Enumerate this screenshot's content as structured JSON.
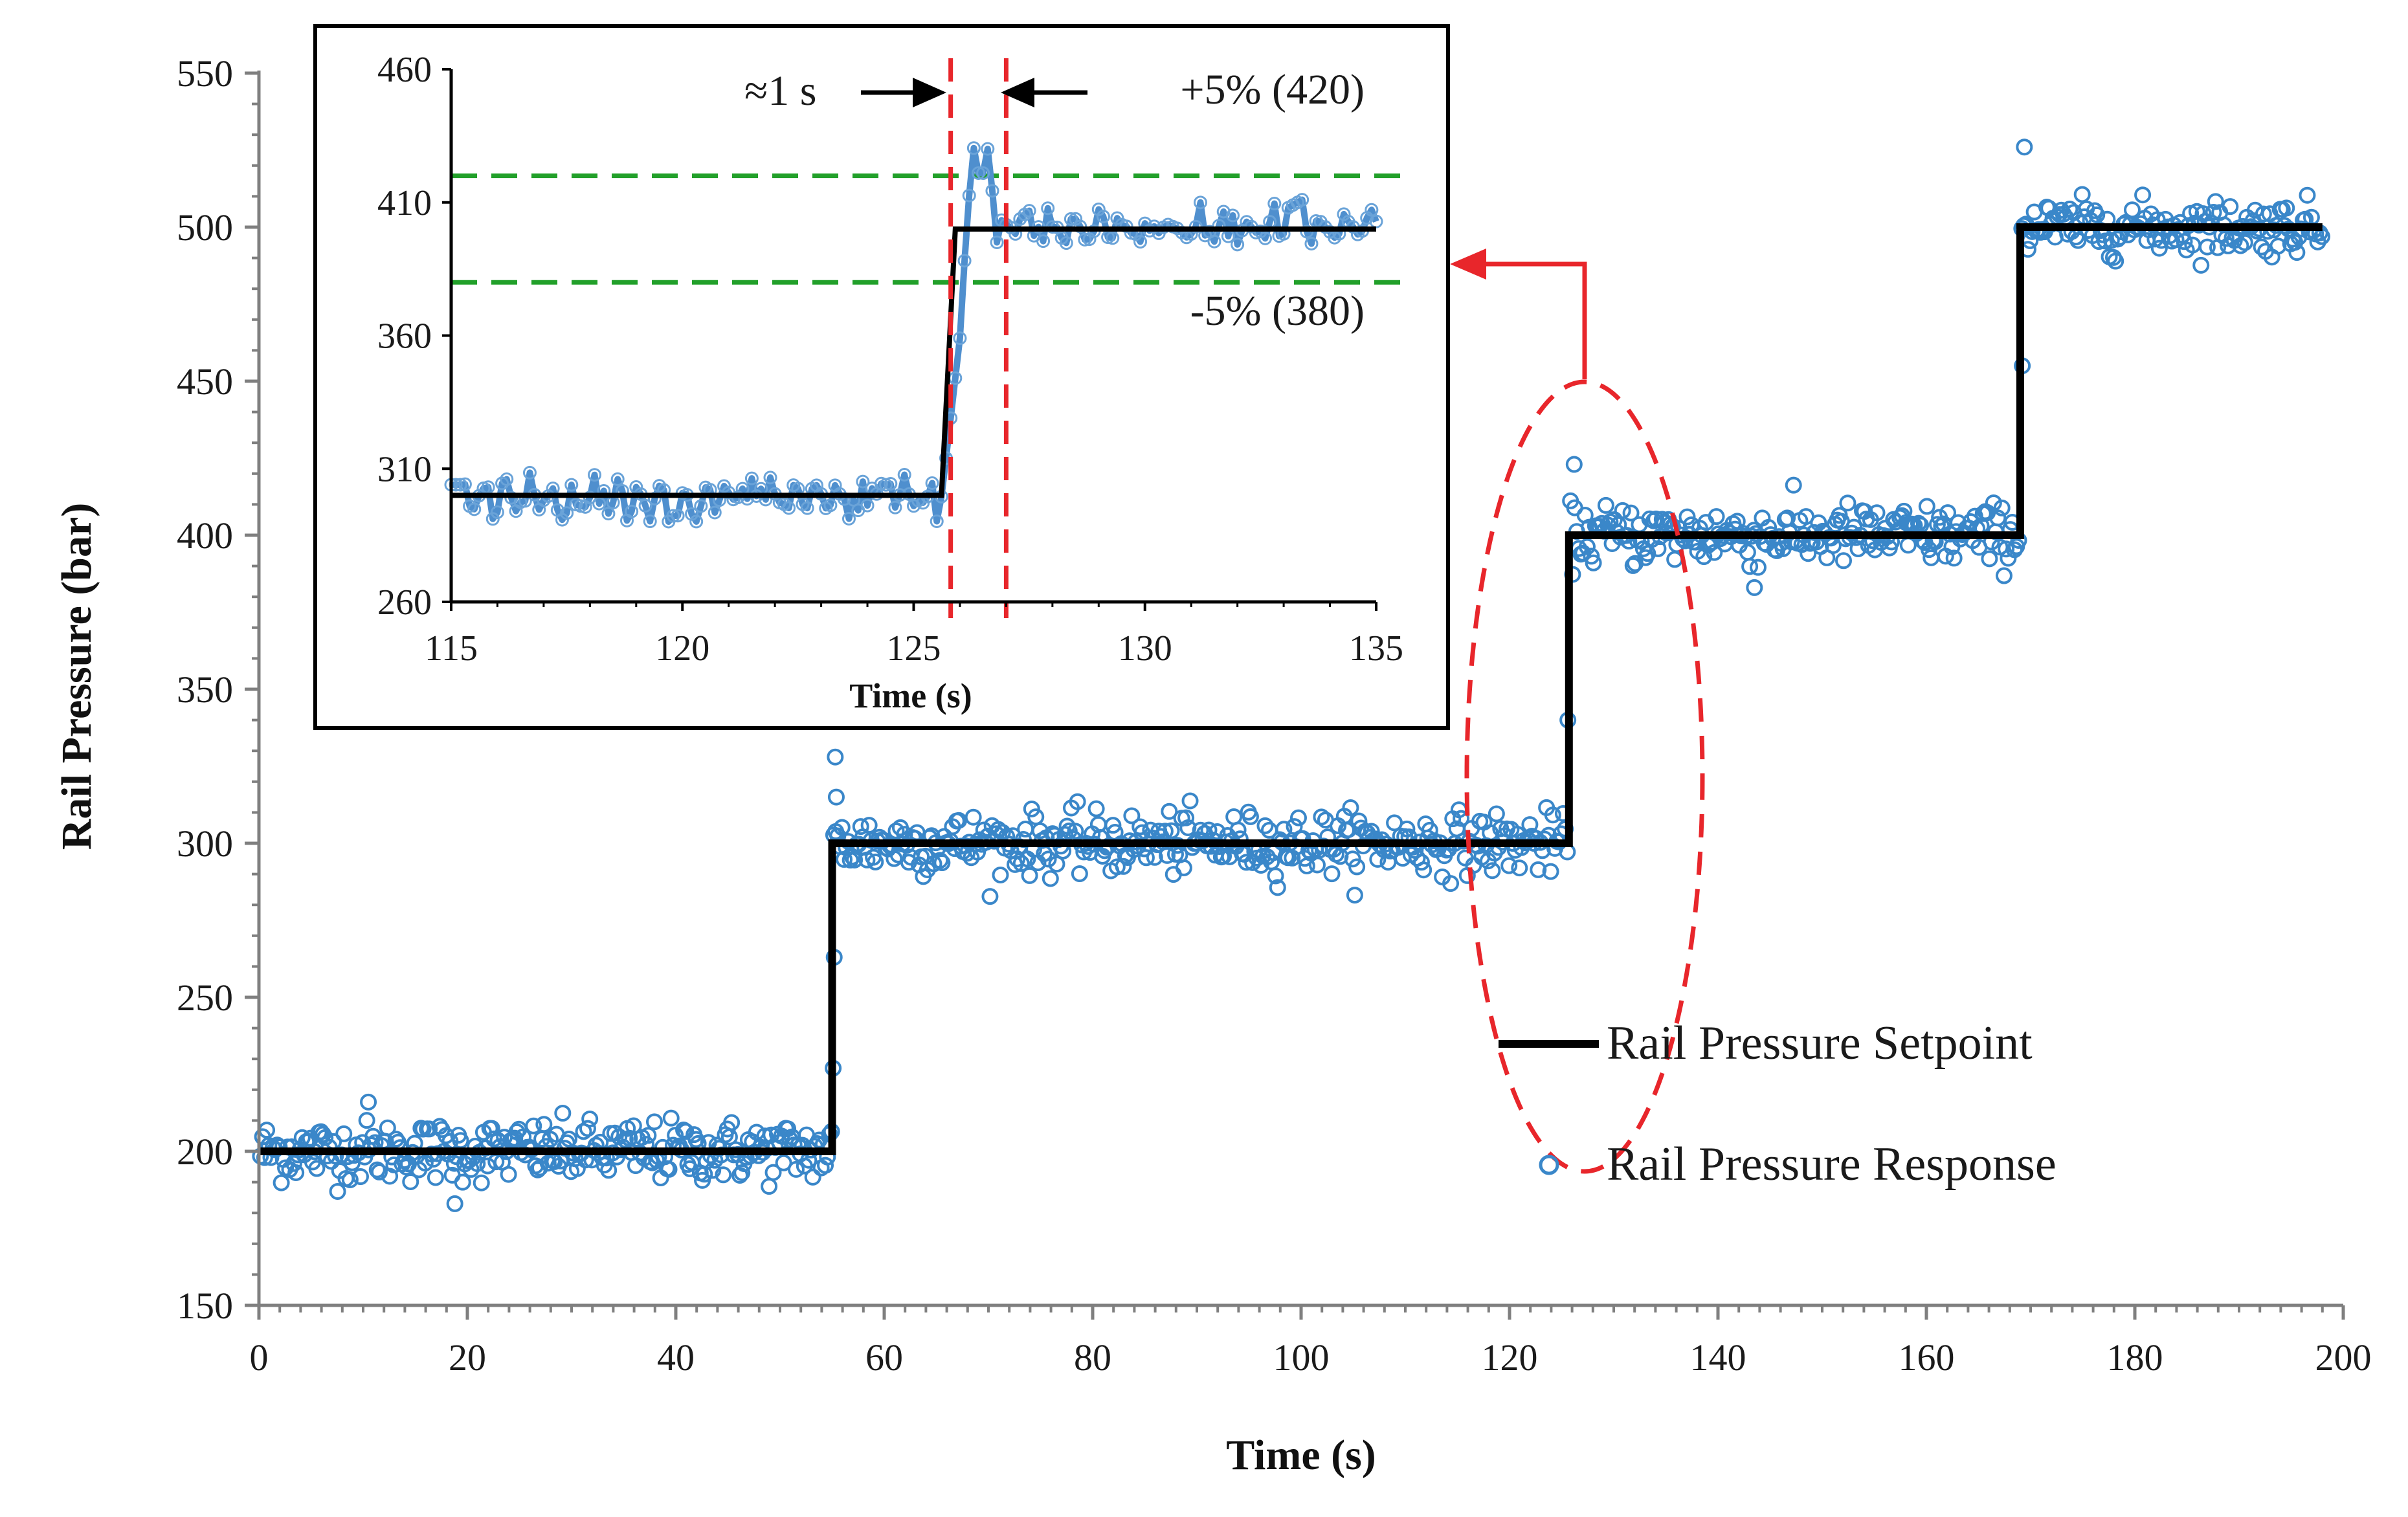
{
  "chart_data": [
    {
      "type": "scatter",
      "xlabel": "Time (s)",
      "ylabel": "Rail Pressure (bar)",
      "xlim": [
        0,
        200
      ],
      "ylim": [
        150,
        550
      ],
      "x_ticks": [
        0,
        20,
        40,
        60,
        80,
        100,
        120,
        140,
        160,
        180,
        200
      ],
      "y_ticks": [
        150,
        200,
        250,
        300,
        350,
        400,
        450,
        500,
        550
      ],
      "grid": false,
      "legend": {
        "placement": "bottom-right",
        "entries": [
          "Rail Pressure Setpoint",
          "Rail Pressure Response"
        ]
      },
      "series": [
        {
          "name": "Rail Pressure Setpoint",
          "kind": "step-line",
          "color": "#000000",
          "x": [
            0,
            55,
            55,
            125.7,
            125.7,
            169,
            169,
            198
          ],
          "y": [
            200,
            200,
            300,
            300,
            400,
            400,
            500,
            500
          ]
        },
        {
          "name": "Rail Pressure Response",
          "kind": "scatter",
          "color": "#3a87c9",
          "description_segments": [
            {
              "x_range": [
                0,
                55
              ],
              "mean": 200,
              "spread": 8
            },
            {
              "x_range": [
                55,
                125.7
              ],
              "mean": 300,
              "spread": 8
            },
            {
              "x_range": [
                125.7,
                169
              ],
              "mean": 400,
              "spread": 8
            },
            {
              "x_range": [
                169,
                198
              ],
              "mean": 500,
              "spread": 7
            }
          ],
          "notable_points": [
            {
              "x": 55.3,
              "y": 328
            },
            {
              "x": 55.4,
              "y": 315
            },
            {
              "x": 55.2,
              "y": 263
            },
            {
              "x": 55.1,
              "y": 227
            },
            {
              "x": 125.6,
              "y": 340
            },
            {
              "x": 126.2,
              "y": 423
            },
            {
              "x": 169.4,
              "y": 526
            },
            {
              "x": 169.2,
              "y": 455
            },
            {
              "x": 18.8,
              "y": 183
            },
            {
              "x": 10.5,
              "y": 216
            },
            {
              "x": 143.5,
              "y": 383
            }
          ]
        }
      ]
    },
    {
      "type": "line",
      "title": "inset",
      "xlabel": "Time (s)",
      "xlim": [
        115,
        135
      ],
      "ylim": [
        260,
        460
      ],
      "x_ticks": [
        115,
        120,
        125,
        130,
        135
      ],
      "y_ticks": [
        260,
        310,
        360,
        410,
        460
      ],
      "series": [
        {
          "name": "Rail Pressure Setpoint",
          "color": "#000000",
          "x": [
            115,
            125.6,
            125.9,
            135
          ],
          "y": [
            300,
            300,
            400,
            400
          ]
        },
        {
          "name": "Rail Pressure Response",
          "color": "#3a87c9",
          "peak": {
            "x": 126.4,
            "y": 421
          },
          "pre_step_mean": 299,
          "post_step_mean": 400
        }
      ],
      "reference_lines": [
        {
          "orientation": "horizontal",
          "y": 420,
          "color": "#22a02a",
          "style": "dashed",
          "label": "+5% (420)"
        },
        {
          "orientation": "horizontal",
          "y": 380,
          "color": "#22a02a",
          "style": "dashed",
          "label": "-5% (380)"
        },
        {
          "orientation": "vertical",
          "x": 125.8,
          "color": "#e8262b",
          "style": "dashed"
        },
        {
          "orientation": "vertical",
          "x": 127.0,
          "color": "#e8262b",
          "style": "dashed"
        }
      ],
      "annotations": [
        {
          "text": "≈1 s",
          "note": "settling time between red dashed lines"
        }
      ]
    }
  ],
  "main": {
    "xlabel": "Time (s)",
    "ylabel": "Rail Pressure (bar)",
    "legend_setpoint": "Rail Pressure Setpoint",
    "legend_response": "Rail Pressure Response"
  },
  "inset": {
    "xlabel": "Time (s)",
    "upper_band_label": "+5% (420)",
    "lower_band_label": "-5% (380)",
    "settling_label": "≈1 s"
  },
  "colors": {
    "setpoint": "#000000",
    "response": "#3a87c9",
    "band": "#22a02a",
    "highlight": "#e8262b"
  }
}
